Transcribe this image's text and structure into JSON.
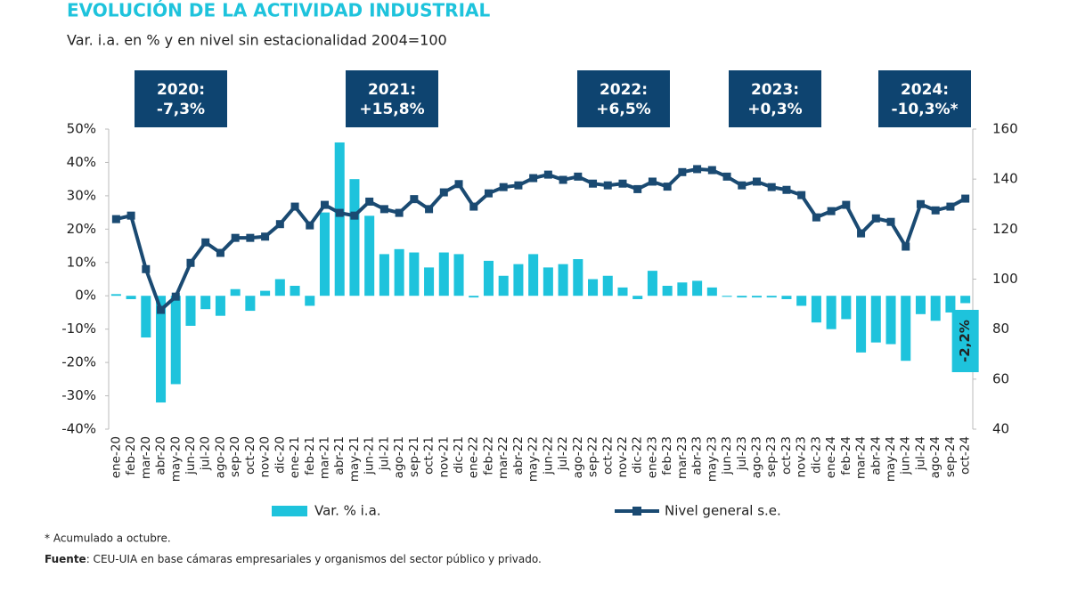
{
  "title": "EVOLUCIÓN DE LA ACTIVIDAD INDUSTRIAL",
  "subtitle": "Var. i.a. en % y en nivel sin estacionalidad 2004=100",
  "footnote": "* Acumulado a octubre.",
  "source_label": "Fuente",
  "source_text": ": CEU-UIA en base cámaras empresariales y organismos del sector público y privado.",
  "chart_data": {
    "type": "combo",
    "annotations": [
      {
        "year": "2020:",
        "value": "-7,3%"
      },
      {
        "year": "2021:",
        "value": "+15,8%"
      },
      {
        "year": "2022:",
        "value": "+6,5%"
      },
      {
        "year": "2023:",
        "value": "+0,3%"
      },
      {
        "year": "2024:",
        "value": "-10,3%*"
      }
    ],
    "categories": [
      "ene-20",
      "feb-20",
      "mar-20",
      "abr-20",
      "may-20",
      "jun-20",
      "jul-20",
      "ago-20",
      "sep-20",
      "oct-20",
      "nov-20",
      "dic-20",
      "ene-21",
      "feb-21",
      "mar-21",
      "abr-21",
      "may-21",
      "jun-21",
      "jul-21",
      "ago-21",
      "sep-21",
      "oct-21",
      "nov-21",
      "dic-21",
      "ene-22",
      "feb-22",
      "mar-22",
      "abr-22",
      "may-22",
      "jun-22",
      "jul-22",
      "ago-22",
      "sep-22",
      "oct-22",
      "nov-22",
      "dic-22",
      "ene-23",
      "feb-23",
      "mar-23",
      "abr-23",
      "may-23",
      "jun-23",
      "jul-23",
      "ago-23",
      "sep-23",
      "oct-23",
      "nov-23",
      "dic-23",
      "ene-24",
      "feb-24",
      "mar-24",
      "abr-24",
      "may-24",
      "jun-24",
      "jul-24",
      "ago-24",
      "sep-24",
      "oct-24"
    ],
    "series": [
      {
        "name": "Var. % i.a.",
        "type": "bar",
        "color": "#1ec3dc",
        "values": [
          0.5,
          -1,
          -12.5,
          -32,
          -26.5,
          -9,
          -4,
          -6,
          2,
          -4.5,
          1.5,
          5,
          3,
          -3,
          25,
          46,
          35,
          24,
          12.5,
          14,
          13,
          8.5,
          13,
          12.5,
          -0.5,
          10.5,
          6,
          9.5,
          12.5,
          8.5,
          9.5,
          11,
          5,
          6,
          2.5,
          -1,
          7.5,
          3,
          4,
          4.5,
          2.5,
          -0.3,
          -0.5,
          -0.5,
          -0.5,
          -1,
          -3,
          -8,
          -10,
          -7,
          -17,
          -14,
          -14.5,
          -19.5,
          -5.5,
          -7.5,
          -5,
          -2.2
        ],
        "value_labels": [
          null,
          null,
          null,
          null,
          null,
          null,
          null,
          null,
          null,
          null,
          null,
          null,
          null,
          null,
          null,
          null,
          null,
          null,
          null,
          null,
          null,
          null,
          null,
          null,
          null,
          null,
          null,
          null,
          null,
          null,
          null,
          null,
          null,
          null,
          null,
          null,
          null,
          null,
          null,
          null,
          null,
          null,
          null,
          null,
          null,
          null,
          null,
          null,
          null,
          null,
          null,
          null,
          null,
          null,
          null,
          null,
          null,
          "-2,2%"
        ]
      },
      {
        "name": "Nivel general s.e.",
        "type": "line",
        "axis": "y2",
        "color": "#1a4a72",
        "values": [
          124,
          125.4,
          104,
          87.7,
          93,
          106.5,
          114.7,
          110.5,
          116.5,
          116.5,
          117,
          122,
          129,
          121.5,
          129.7,
          126.5,
          125.4,
          131,
          128,
          126.5,
          132,
          128,
          134.7,
          138,
          129,
          134.3,
          136.8,
          137.5,
          140.4,
          141.8,
          139.7,
          141,
          138.2,
          137.5,
          138.2,
          136,
          139,
          137,
          142.8,
          144,
          143.6,
          141,
          137.5,
          139,
          136.8,
          135.7,
          133.6,
          124.7,
          127.2,
          129.7,
          118.3,
          124.3,
          122.9,
          113,
          130,
          127.5,
          129,
          132.2
        ]
      }
    ],
    "ylim": [
      -40,
      50
    ],
    "yticks": [
      {
        "value": -40,
        "label": "-40%"
      },
      {
        "value": -30,
        "label": "-30%"
      },
      {
        "value": -20,
        "label": "-20%"
      },
      {
        "value": -10,
        "label": "-10%"
      },
      {
        "value": 0,
        "label": "0%"
      },
      {
        "value": 10,
        "label": "10%"
      },
      {
        "value": 20,
        "label": "20%"
      },
      {
        "value": 30,
        "label": "30%"
      },
      {
        "value": 40,
        "label": "40%"
      },
      {
        "value": 50,
        "label": "50%"
      }
    ],
    "y2lim": [
      40,
      160
    ],
    "y2ticks": [
      40,
      60,
      80,
      100,
      120,
      140,
      160
    ]
  }
}
